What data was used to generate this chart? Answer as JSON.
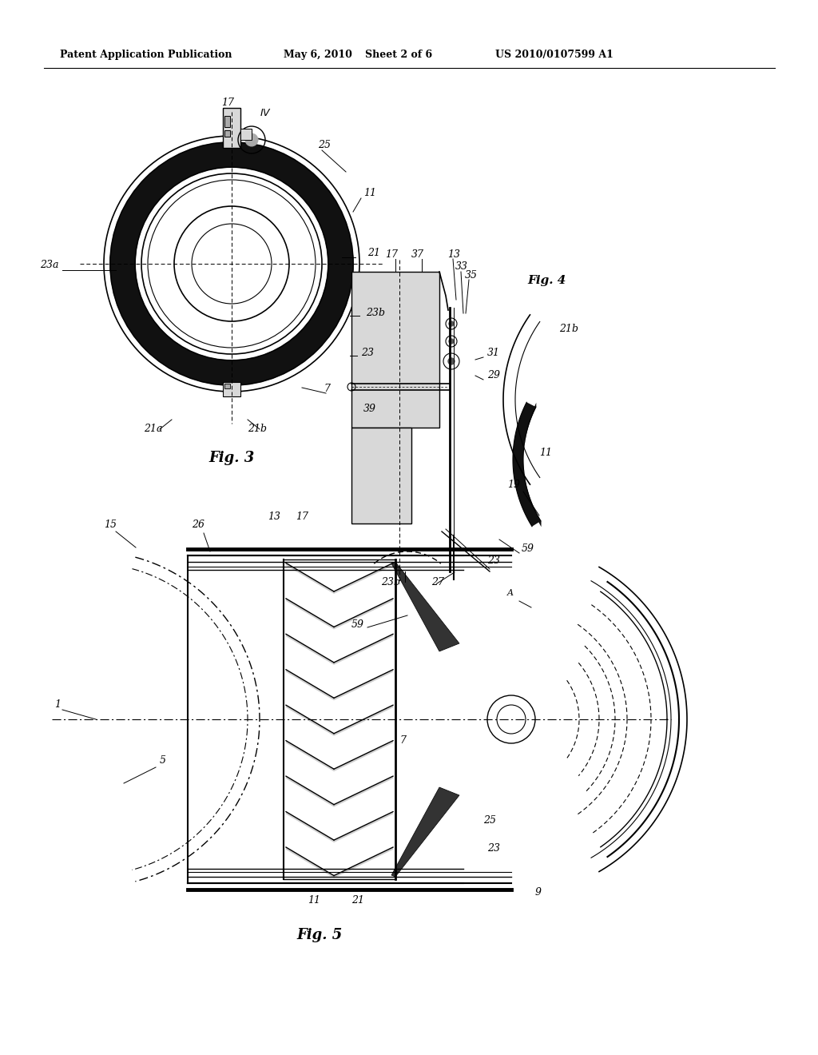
{
  "bg_color": "#ffffff",
  "header_text1": "Patent Application Publication",
  "header_text2": "May 6, 2010",
  "header_text3": "Sheet 2 of 6",
  "header_text4": "US 2010/0107599 A1",
  "fig3_label": "Fig. 3",
  "fig4_label": "Fig. 4",
  "fig5_label": "Fig. 5",
  "lc": "#000000",
  "thick_color": "#111111",
  "gray_light": "#d8d8d8",
  "gray_med": "#aaaaaa",
  "gray_dark": "#555555",
  "hatch_gray": "#444444"
}
